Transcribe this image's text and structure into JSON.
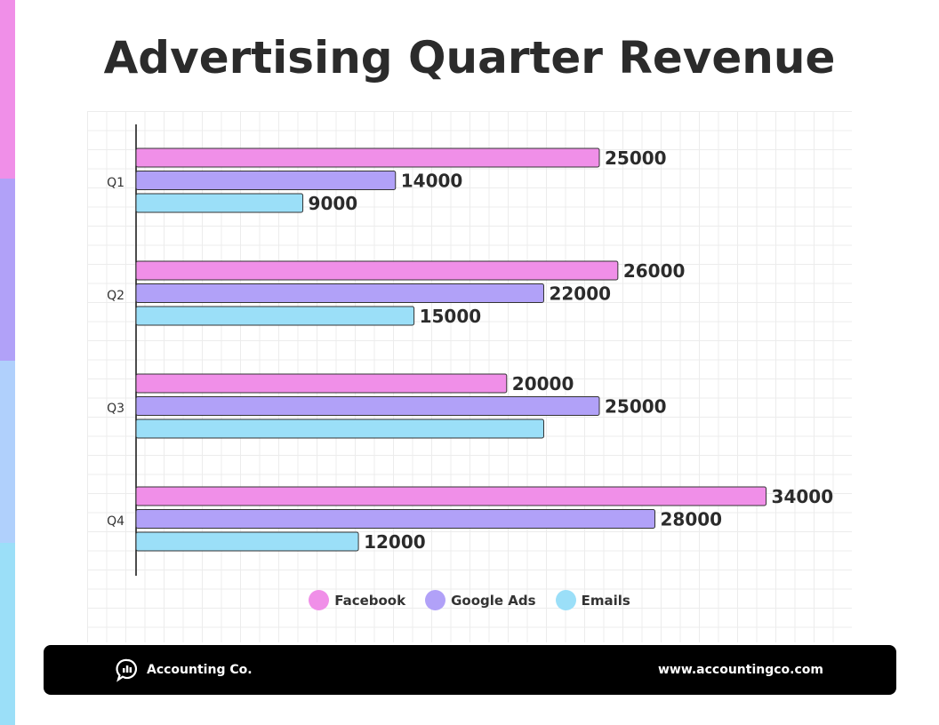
{
  "title": "Advertising Quarter Revenue",
  "colors": {
    "Facebook": "#f08fe8",
    "Google Ads": "#b1a1f8",
    "Emails": "#9bdff8",
    "stripe": [
      "#f08fe8",
      "#b1a1f8",
      "#b0d0fc",
      "#9bdff8"
    ]
  },
  "chart_data": {
    "type": "bar",
    "orientation": "horizontal",
    "title": "Advertising Quarter Revenue",
    "categories": [
      "Q1",
      "Q2",
      "Q3",
      "Q4"
    ],
    "series": [
      {
        "name": "Facebook",
        "values": [
          25000,
          26000,
          20000,
          34000
        ],
        "labels": [
          "25000",
          "26000",
          "20000",
          "34000"
        ]
      },
      {
        "name": "Google Ads",
        "values": [
          14000,
          22000,
          25000,
          28000
        ],
        "labels": [
          "14000",
          "22000",
          "25000",
          "28000"
        ]
      },
      {
        "name": "Emails",
        "values": [
          9000,
          15000,
          22000,
          12000
        ],
        "labels": [
          "9000",
          "15000",
          "",
          "12000"
        ]
      }
    ],
    "xlim": [
      0,
      34000
    ],
    "grid": true,
    "legend": "bottom"
  },
  "footer": {
    "brand": "Accounting Co.",
    "url": "www.accountingco.com",
    "logo_icon": "chat-bubble-chart-icon"
  }
}
